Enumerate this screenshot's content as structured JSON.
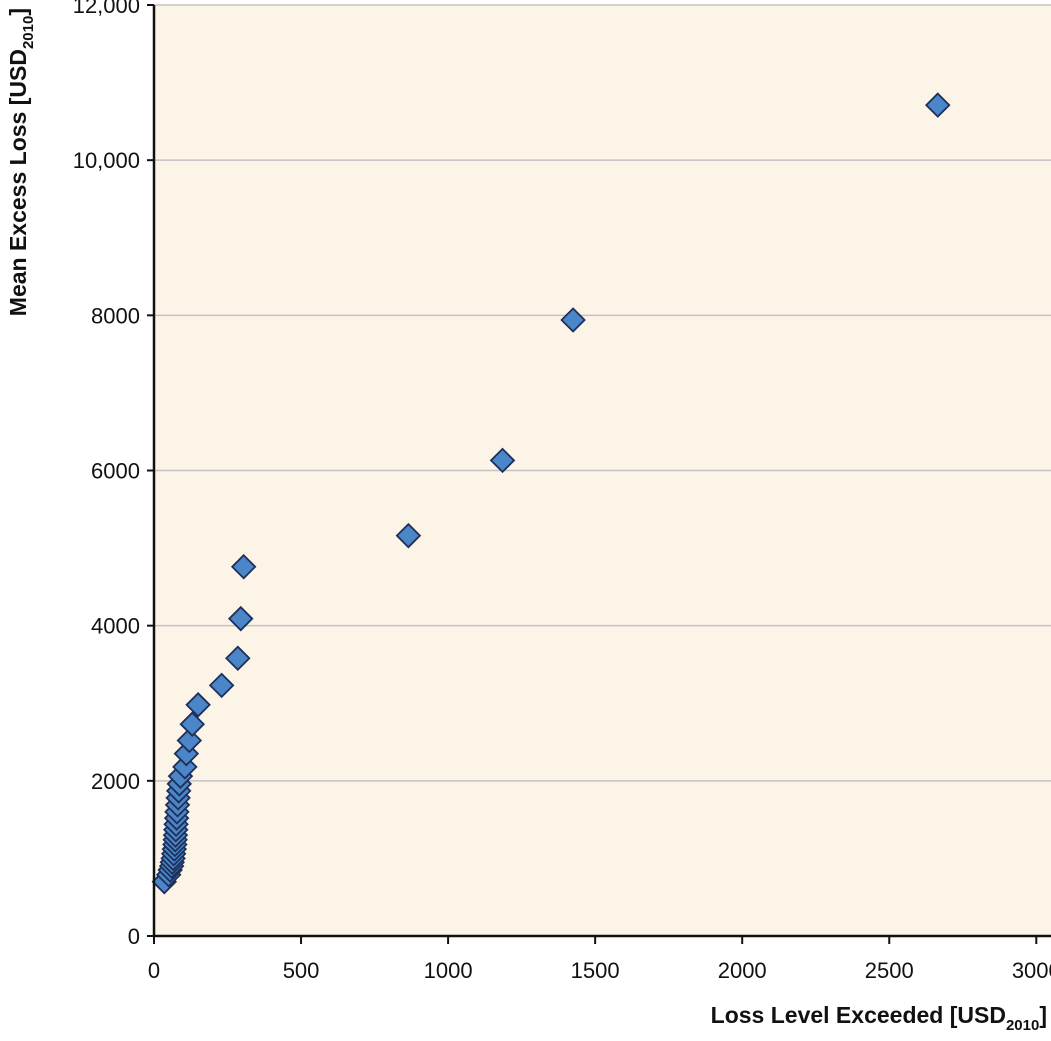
{
  "chart_data": {
    "type": "scatter",
    "title": "",
    "xlabel": {
      "main": "Loss Level Exceeded [USD",
      "sub": "2010",
      "close": "]"
    },
    "ylabel": {
      "main": "Mean Excess Loss [USD",
      "sub": "2010",
      "close": "]"
    },
    "xlim": [
      0,
      3050
    ],
    "ylim": [
      0,
      12000
    ],
    "xticks": [
      {
        "value": 0,
        "label": "0"
      },
      {
        "value": 500,
        "label": "500"
      },
      {
        "value": 1000,
        "label": "1000"
      },
      {
        "value": 1500,
        "label": "1500"
      },
      {
        "value": 2000,
        "label": "2000"
      },
      {
        "value": 2500,
        "label": "2500"
      },
      {
        "value": 3000,
        "label": "3000"
      }
    ],
    "yticks": [
      {
        "value": 0,
        "label": "0"
      },
      {
        "value": 2000,
        "label": "2000"
      },
      {
        "value": 4000,
        "label": "4000"
      },
      {
        "value": 6000,
        "label": "6000"
      },
      {
        "value": 8000,
        "label": "8000"
      },
      {
        "value": 10000,
        "label": "10,000"
      },
      {
        "value": 12000,
        "label": "12,000"
      }
    ],
    "grid": {
      "horizontal": true,
      "vertical": false
    },
    "legend": "none",
    "marker": "diamond",
    "colors": {
      "plot_background": "#fdf4e8",
      "marker_fill": "#4a86c8",
      "marker_stroke": "#1e2f5a",
      "gridline": "#c6c2c2",
      "axis": "#111111"
    },
    "series": [
      {
        "points": [
          {
            "x": 35,
            "y": 700
          },
          {
            "x": 50,
            "y": 790
          },
          {
            "x": 55,
            "y": 850
          },
          {
            "x": 60,
            "y": 900
          },
          {
            "x": 62,
            "y": 950
          },
          {
            "x": 65,
            "y": 1000
          },
          {
            "x": 67,
            "y": 1060
          },
          {
            "x": 69,
            "y": 1120
          },
          {
            "x": 71,
            "y": 1180
          },
          {
            "x": 72,
            "y": 1240
          },
          {
            "x": 73,
            "y": 1300
          },
          {
            "x": 74,
            "y": 1370
          },
          {
            "x": 75,
            "y": 1440
          },
          {
            "x": 77,
            "y": 1520
          },
          {
            "x": 78,
            "y": 1600
          },
          {
            "x": 80,
            "y": 1690
          },
          {
            "x": 82,
            "y": 1780
          },
          {
            "x": 84,
            "y": 1870
          },
          {
            "x": 86,
            "y": 1960
          },
          {
            "x": 90,
            "y": 2060
          },
          {
            "x": 105,
            "y": 2180
          },
          {
            "x": 110,
            "y": 2350
          },
          {
            "x": 120,
            "y": 2520
          },
          {
            "x": 130,
            "y": 2730
          },
          {
            "x": 150,
            "y": 2980
          },
          {
            "x": 230,
            "y": 3230
          },
          {
            "x": 285,
            "y": 3580
          },
          {
            "x": 295,
            "y": 4090
          },
          {
            "x": 305,
            "y": 4760
          },
          {
            "x": 865,
            "y": 5160
          },
          {
            "x": 1185,
            "y": 6130
          },
          {
            "x": 1425,
            "y": 7940
          },
          {
            "x": 2665,
            "y": 10710
          }
        ]
      }
    ]
  }
}
